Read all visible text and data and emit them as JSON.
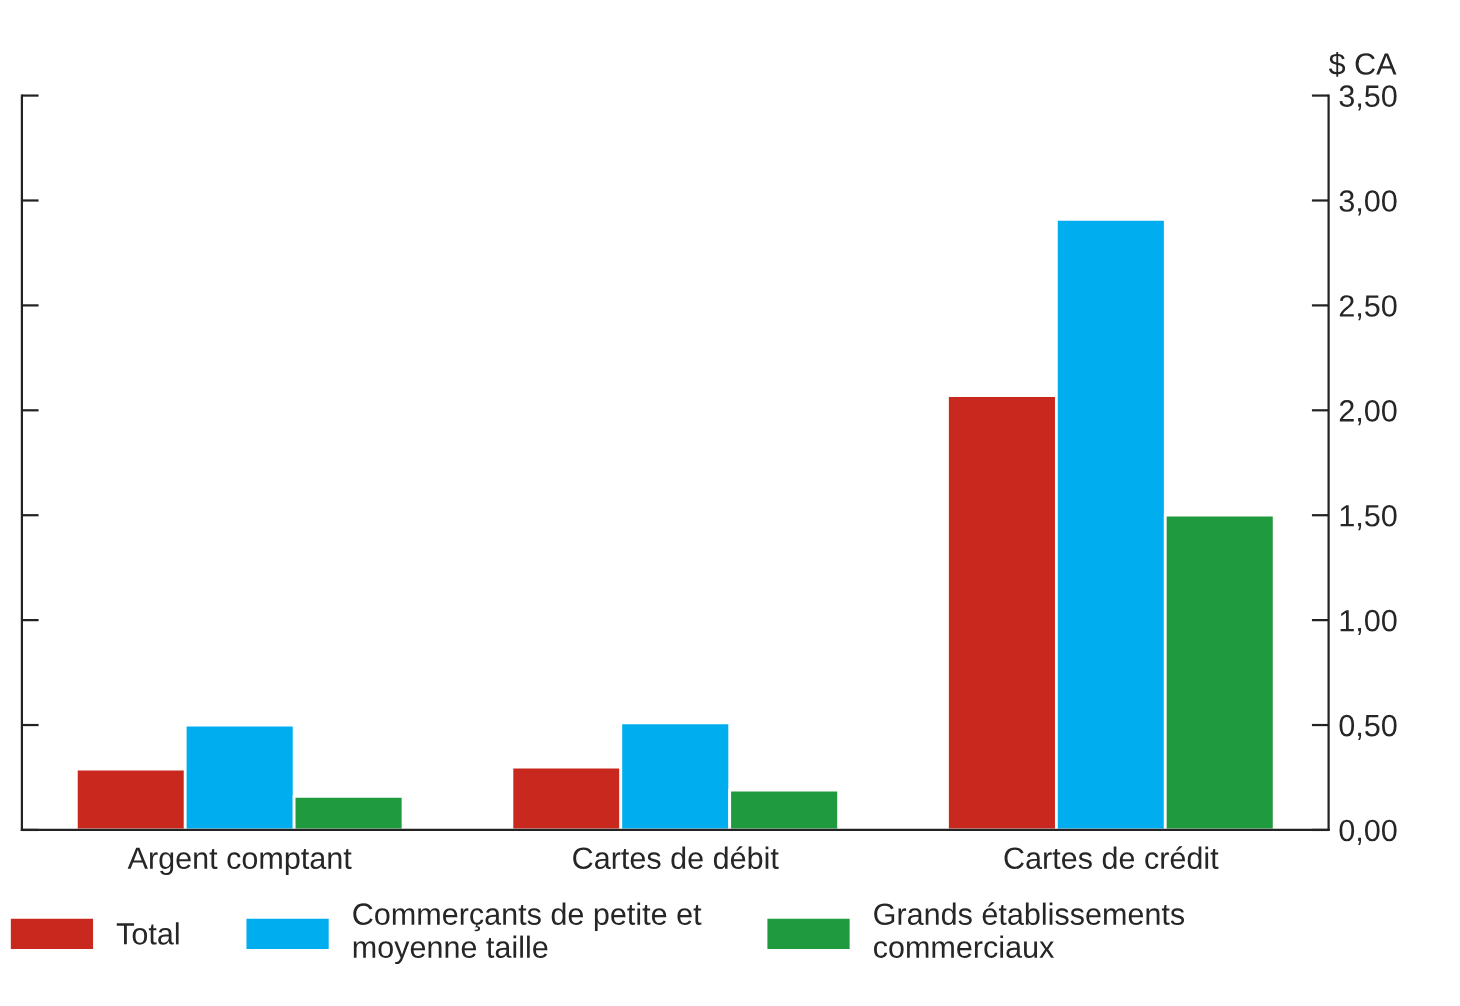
{
  "chart_data": {
    "type": "bar",
    "categories": [
      "Argent comptant",
      "Cartes de débit",
      "Cartes de crédit"
    ],
    "ylabel": "$ CA",
    "series": [
      {
        "name": "Total",
        "color": "#c8281e",
        "values": [
          0.29,
          0.3,
          2.07
        ]
      },
      {
        "name": "Commerçants de petite et moyenne taille",
        "color": "#00aeef",
        "values": [
          0.5,
          0.51,
          2.91
        ]
      },
      {
        "name": "Grands établissements commerciaux",
        "color": "#1f9a3e",
        "values": [
          0.16,
          0.19,
          1.5
        ]
      }
    ],
    "ylim": [
      0,
      3.5
    ],
    "yticks": [
      {
        "value": 0,
        "label": "0,00"
      },
      {
        "value": 0.5,
        "label": "0,50"
      },
      {
        "value": 1,
        "label": "1,00"
      },
      {
        "value": 1.5,
        "label": "1,50"
      },
      {
        "value": 2,
        "label": "2,00"
      },
      {
        "value": 2.5,
        "label": "2,50"
      },
      {
        "value": 3,
        "label": "3,00"
      },
      {
        "value": 3.5,
        "label": "3,50"
      }
    ],
    "grid": false,
    "legend": "bottom"
  }
}
